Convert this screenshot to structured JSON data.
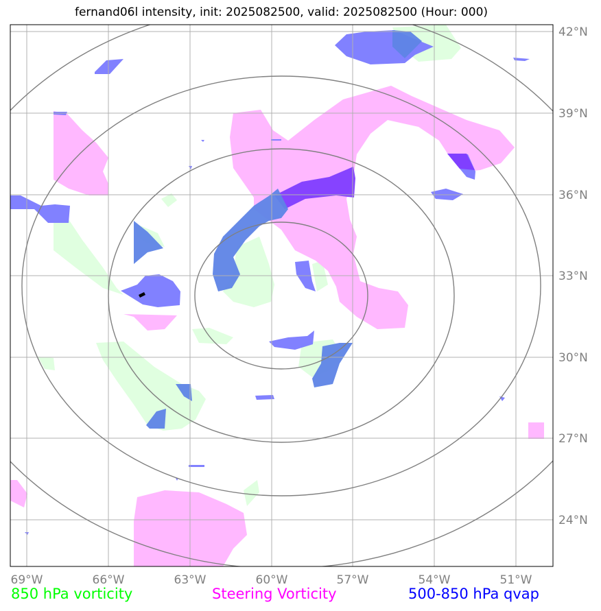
{
  "title": "fernand06l intensity, init: 2025082500, valid: 2025082500 (Hour: 000)",
  "axes": {
    "lon_ticks": [
      "69°W",
      "66°W",
      "63°W",
      "60°W",
      "57°W",
      "54°W",
      "51°W"
    ],
    "lat_ticks": [
      "42°N",
      "39°N",
      "36°N",
      "33°N",
      "30°N",
      "27°N",
      "24°N"
    ]
  },
  "legend": {
    "green_label": "850 hPa vorticity",
    "magenta_label": "Steering Vorticity",
    "blue_label": "500-850 hPa qvap"
  },
  "colors": {
    "green": "#00ff00",
    "green_fill": "#e0ffe0",
    "magenta": "#ff00ff",
    "magenta_fill": "#ffb8ff",
    "blue": "#0000ff",
    "blue_fill": "#7a7aff",
    "range_ring": "#808080",
    "grid": "#b0b0b0"
  }
}
